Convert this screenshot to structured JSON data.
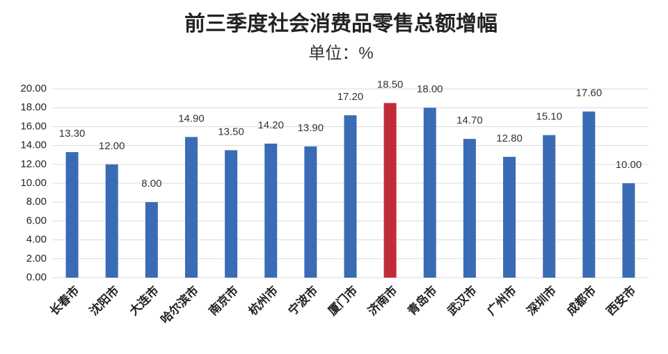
{
  "chart_data": {
    "type": "bar",
    "title": "前三季度社会消费品零售总额增幅",
    "subtitle": "单位：%",
    "categories": [
      "长春市",
      "沈阳市",
      "大连市",
      "哈尔滨市",
      "南京市",
      "杭州市",
      "宁波市",
      "厦门市",
      "济南市",
      "青岛市",
      "武汉市",
      "广州市",
      "深圳市",
      "成都市",
      "西安市"
    ],
    "values": [
      13.3,
      12,
      8,
      14.9,
      13.5,
      14.2,
      13.9,
      17.2,
      18.5,
      18,
      14.7,
      12.8,
      15.1,
      17.6,
      10
    ],
    "value_labels": [
      "13.30",
      "12.00",
      "8.00",
      "14.90",
      "13.50",
      "14.20",
      "13.90",
      "17.20",
      "18.50",
      "18.00",
      "14.70",
      "12.80",
      "15.10",
      "17.60",
      "10.00"
    ],
    "colors": [
      "#3a6cb5",
      "#3a6cb5",
      "#3a6cb5",
      "#3a6cb5",
      "#3a6cb5",
      "#3a6cb5",
      "#3a6cb5",
      "#3a6cb5",
      "#c22b3a",
      "#3a6cb5",
      "#3a6cb5",
      "#3a6cb5",
      "#3a6cb5",
      "#3a6cb5",
      "#3a6cb5"
    ],
    "ylim": [
      0,
      20
    ],
    "yticks": [
      {
        "value": 0,
        "label": "0.00"
      },
      {
        "value": 2,
        "label": "2.00"
      },
      {
        "value": 4,
        "label": "4.00"
      },
      {
        "value": 6,
        "label": "6.00"
      },
      {
        "value": 8,
        "label": "8.00"
      },
      {
        "value": 10,
        "label": "10.00"
      },
      {
        "value": 12,
        "label": "12.00"
      },
      {
        "value": 14,
        "label": "14.00"
      },
      {
        "value": 16,
        "label": "16.00"
      },
      {
        "value": 18,
        "label": "18.00"
      },
      {
        "value": 20,
        "label": "20.00"
      }
    ],
    "grid": true
  }
}
